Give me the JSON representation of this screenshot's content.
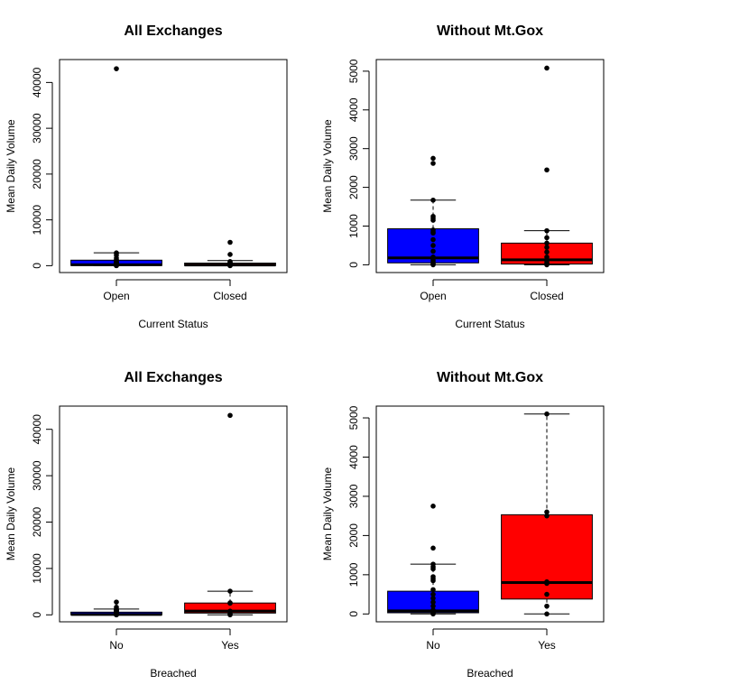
{
  "chart_data": [
    {
      "type": "boxplot",
      "title": "All Exchanges",
      "xlabel": "Current Status",
      "ylabel": "Mean Daily Volume",
      "categories": [
        "Open",
        "Closed"
      ],
      "ylim": [
        -1500,
        45000
      ],
      "yticks": [
        0,
        10000,
        20000,
        30000,
        40000
      ],
      "yticklabels": [
        "0",
        "10000",
        "20000",
        "30000",
        "40000"
      ],
      "grid": false,
      "boxes": [
        {
          "category": "Open",
          "color": "#0000ff",
          "whisker_low": 0,
          "q1": 50,
          "median": 200,
          "q3": 1200,
          "whisker_high": 2800,
          "points": [
            43000,
            2800,
            2700,
            2300,
            1650,
            1250,
            1200,
            1150,
            900,
            820,
            700,
            600,
            500,
            350,
            250,
            200,
            150,
            100,
            50,
            20,
            0
          ]
        },
        {
          "category": "Closed",
          "color": "#ff0000",
          "whisker_low": 0,
          "q1": 20,
          "median": 150,
          "q3": 560,
          "whisker_high": 1100,
          "points": [
            5100,
            2450,
            900,
            700,
            550,
            450,
            350,
            250,
            150,
            80,
            20,
            0
          ]
        }
      ]
    },
    {
      "type": "boxplot",
      "title": "Without Mt.Gox",
      "xlabel": "Current Status",
      "ylabel": "Mean Daily Volume",
      "categories": [
        "Open",
        "Closed"
      ],
      "ylim": [
        -200,
        5300
      ],
      "yticks": [
        0,
        1000,
        2000,
        3000,
        4000,
        5000
      ],
      "yticklabels": [
        "0",
        "1000",
        "2000",
        "3000",
        "4000",
        "5000"
      ],
      "grid": false,
      "boxes": [
        {
          "category": "Open",
          "color": "#0000ff",
          "whisker_low": 0,
          "q1": 50,
          "median": 180,
          "q3": 930,
          "whisker_high": 1670,
          "points": [
            2750,
            2620,
            1670,
            1250,
            1200,
            1150,
            900,
            850,
            820,
            650,
            500,
            350,
            200,
            150,
            100,
            50,
            20,
            0
          ]
        },
        {
          "category": "Closed",
          "color": "#ff0000",
          "whisker_low": 0,
          "q1": 20,
          "median": 130,
          "q3": 560,
          "whisker_high": 880,
          "points": [
            5080,
            2450,
            880,
            700,
            560,
            450,
            330,
            200,
            100,
            50,
            20,
            0
          ]
        }
      ]
    },
    {
      "type": "boxplot",
      "title": "All Exchanges",
      "xlabel": "Breached",
      "ylabel": "Mean Daily Volume",
      "categories": [
        "No",
        "Yes"
      ],
      "ylim": [
        -1500,
        45000
      ],
      "yticks": [
        0,
        10000,
        20000,
        30000,
        40000
      ],
      "yticklabels": [
        "0",
        "10000",
        "20000",
        "30000",
        "40000"
      ],
      "grid": false,
      "boxes": [
        {
          "category": "No",
          "color": "#0000ff",
          "whisker_low": 0,
          "q1": 30,
          "median": 80,
          "q3": 580,
          "whisker_high": 1250,
          "points": [
            2750,
            1650,
            1250,
            1200,
            1100,
            900,
            850,
            800,
            600,
            500,
            350,
            200,
            100,
            50,
            20,
            0
          ]
        },
        {
          "category": "Yes",
          "color": "#ff0000",
          "whisker_low": 0,
          "q1": 380,
          "median": 800,
          "q3": 2550,
          "whisker_high": 5100,
          "points": [
            43000,
            5100,
            2600,
            2500,
            800,
            750,
            200,
            0
          ]
        }
      ]
    },
    {
      "type": "boxplot",
      "title": "Without Mt.Gox",
      "xlabel": "Breached",
      "ylabel": "Mean Daily Volume",
      "categories": [
        "No",
        "Yes"
      ],
      "ylim": [
        -200,
        5300
      ],
      "yticks": [
        0,
        1000,
        2000,
        3000,
        4000,
        5000
      ],
      "yticklabels": [
        "0",
        "1000",
        "2000",
        "3000",
        "4000",
        "5000"
      ],
      "grid": false,
      "boxes": [
        {
          "category": "No",
          "color": "#0000ff",
          "whisker_low": 0,
          "q1": 30,
          "median": 80,
          "q3": 580,
          "whisker_high": 1270,
          "points": [
            2750,
            1680,
            1270,
            1200,
            1150,
            950,
            900,
            850,
            620,
            500,
            400,
            300,
            200,
            100,
            50,
            20,
            0
          ]
        },
        {
          "category": "Yes",
          "color": "#ff0000",
          "whisker_low": 0,
          "q1": 380,
          "median": 800,
          "q3": 2530,
          "whisker_high": 5100,
          "points": [
            5100,
            2600,
            2500,
            820,
            780,
            500,
            200,
            0
          ]
        }
      ]
    }
  ]
}
